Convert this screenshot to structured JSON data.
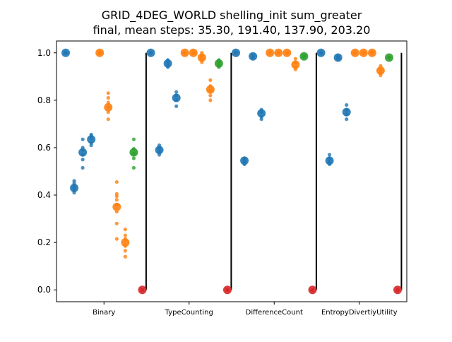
{
  "chart_data": {
    "type": "scatter",
    "title": "GRID_4DEG_WORLD shelling_init sum_greater",
    "subtitle": "final, mean steps: 35.30, 191.40, 137.90, 203.20",
    "categories": [
      "Binary",
      "TypeCounting",
      "DifferenceCount",
      "EntropyDivertiyUtility"
    ],
    "y_ticks": [
      "0.0",
      "0.2",
      "0.4",
      "0.6",
      "0.8",
      "1.0"
    ],
    "ylim": [
      -0.05,
      1.05
    ],
    "grid": false,
    "colors": {
      "blue": "#1f77b4",
      "orange": "#ff7f0e",
      "green": "#2ca02c",
      "red": "#d62728",
      "separator": "#000000"
    },
    "groups": [
      {
        "category": "Binary",
        "points": [
          {
            "color": "blue",
            "x": 0.05,
            "mean": 1.0,
            "samples": [
              1.0,
              1.0,
              1.0
            ]
          },
          {
            "color": "blue",
            "x": 0.15,
            "mean": 0.43,
            "samples": [
              0.41,
              0.42,
              0.43,
              0.44,
              0.45,
              0.46
            ]
          },
          {
            "color": "blue",
            "x": 0.25,
            "mean": 0.58,
            "samples": [
              0.515,
              0.55,
              0.57,
              0.59,
              0.6,
              0.635
            ]
          },
          {
            "color": "blue",
            "x": 0.35,
            "mean": 0.635,
            "samples": [
              0.61,
              0.62,
              0.64,
              0.65,
              0.655
            ]
          },
          {
            "color": "orange",
            "x": 0.45,
            "mean": 1.0,
            "samples": [
              1.0,
              1.0,
              1.0
            ]
          },
          {
            "color": "orange",
            "x": 0.55,
            "mean": 0.77,
            "samples": [
              0.72,
              0.75,
              0.77,
              0.79,
              0.81,
              0.83
            ]
          },
          {
            "color": "orange",
            "x": 0.65,
            "mean": 0.35,
            "samples": [
              0.215,
              0.28,
              0.33,
              0.36,
              0.38,
              0.395,
              0.405,
              0.455
            ]
          },
          {
            "color": "orange",
            "x": 0.75,
            "mean": 0.2,
            "samples": [
              0.14,
              0.165,
              0.185,
              0.215,
              0.23,
              0.255
            ]
          },
          {
            "color": "green",
            "x": 0.85,
            "mean": 0.58,
            "samples": [
              0.515,
              0.555,
              0.575,
              0.595,
              0.635
            ]
          },
          {
            "color": "red",
            "x": 0.95,
            "mean": 0.0,
            "samples": [
              0.0,
              0.0
            ]
          }
        ]
      },
      {
        "category": "TypeCounting",
        "points": [
          {
            "color": "blue",
            "x": 0.05,
            "mean": 1.0,
            "samples": [
              1.0,
              1.0
            ]
          },
          {
            "color": "blue",
            "x": 0.15,
            "mean": 0.59,
            "samples": [
              0.57,
              0.58,
              0.59,
              0.6,
              0.61
            ]
          },
          {
            "color": "blue",
            "x": 0.25,
            "mean": 0.955,
            "samples": [
              0.94,
              0.95,
              0.96,
              0.97
            ]
          },
          {
            "color": "blue",
            "x": 0.35,
            "mean": 0.81,
            "samples": [
              0.775,
              0.8,
              0.82,
              0.835
            ]
          },
          {
            "color": "orange",
            "x": 0.45,
            "mean": 1.0,
            "samples": [
              1.0,
              1.0
            ]
          },
          {
            "color": "orange",
            "x": 0.55,
            "mean": 1.0,
            "samples": [
              1.0,
              1.0
            ]
          },
          {
            "color": "orange",
            "x": 0.65,
            "mean": 0.98,
            "samples": [
              0.96,
              0.97,
              0.98,
              0.99,
              1.0
            ]
          },
          {
            "color": "orange",
            "x": 0.75,
            "mean": 0.845,
            "samples": [
              0.8,
              0.82,
              0.84,
              0.86,
              0.885
            ]
          },
          {
            "color": "green",
            "x": 0.85,
            "mean": 0.955,
            "samples": [
              0.94,
              0.95,
              0.96,
              0.97
            ]
          },
          {
            "color": "red",
            "x": 0.95,
            "mean": 0.0,
            "samples": [
              0.0,
              0.0
            ]
          }
        ]
      },
      {
        "category": "DifferenceCount",
        "points": [
          {
            "color": "blue",
            "x": 0.05,
            "mean": 1.0,
            "samples": [
              1.0,
              1.0
            ]
          },
          {
            "color": "blue",
            "x": 0.15,
            "mean": 0.545,
            "samples": [
              0.53,
              0.54,
              0.55,
              0.555
            ]
          },
          {
            "color": "blue",
            "x": 0.25,
            "mean": 0.985,
            "samples": [
              0.98,
              0.985,
              0.99
            ]
          },
          {
            "color": "blue",
            "x": 0.35,
            "mean": 0.745,
            "samples": [
              0.72,
              0.73,
              0.75,
              0.76
            ]
          },
          {
            "color": "orange",
            "x": 0.45,
            "mean": 1.0,
            "samples": [
              1.0,
              1.0
            ]
          },
          {
            "color": "orange",
            "x": 0.55,
            "mean": 1.0,
            "samples": [
              1.0,
              1.0
            ]
          },
          {
            "color": "orange",
            "x": 0.65,
            "mean": 1.0,
            "samples": [
              1.0,
              1.0
            ]
          },
          {
            "color": "orange",
            "x": 0.75,
            "mean": 0.95,
            "samples": [
              0.93,
              0.94,
              0.96,
              0.975
            ]
          },
          {
            "color": "green",
            "x": 0.85,
            "mean": 0.985,
            "samples": [
              0.985,
              0.985
            ]
          },
          {
            "color": "red",
            "x": 0.95,
            "mean": 0.0,
            "samples": [
              0.0,
              0.0
            ]
          }
        ]
      },
      {
        "category": "EntropyDivertiyUtility",
        "points": [
          {
            "color": "blue",
            "x": 0.05,
            "mean": 1.0,
            "samples": [
              1.0,
              1.0
            ]
          },
          {
            "color": "blue",
            "x": 0.15,
            "mean": 0.545,
            "samples": [
              0.53,
              0.54,
              0.555,
              0.57
            ]
          },
          {
            "color": "blue",
            "x": 0.25,
            "mean": 0.98,
            "samples": [
              0.975,
              0.98,
              0.985
            ]
          },
          {
            "color": "blue",
            "x": 0.35,
            "mean": 0.75,
            "samples": [
              0.72,
              0.74,
              0.76,
              0.78
            ]
          },
          {
            "color": "orange",
            "x": 0.45,
            "mean": 1.0,
            "samples": [
              1.0,
              1.0
            ]
          },
          {
            "color": "orange",
            "x": 0.55,
            "mean": 1.0,
            "samples": [
              1.0,
              1.0
            ]
          },
          {
            "color": "orange",
            "x": 0.65,
            "mean": 1.0,
            "samples": [
              1.0,
              1.0
            ]
          },
          {
            "color": "orange",
            "x": 0.75,
            "mean": 0.925,
            "samples": [
              0.905,
              0.915,
              0.93,
              0.945
            ]
          },
          {
            "color": "green",
            "x": 0.85,
            "mean": 0.98,
            "samples": [
              0.98,
              0.98
            ]
          },
          {
            "color": "red",
            "x": 0.95,
            "mean": 0.0,
            "samples": [
              0.0,
              0.0
            ]
          }
        ]
      }
    ]
  }
}
